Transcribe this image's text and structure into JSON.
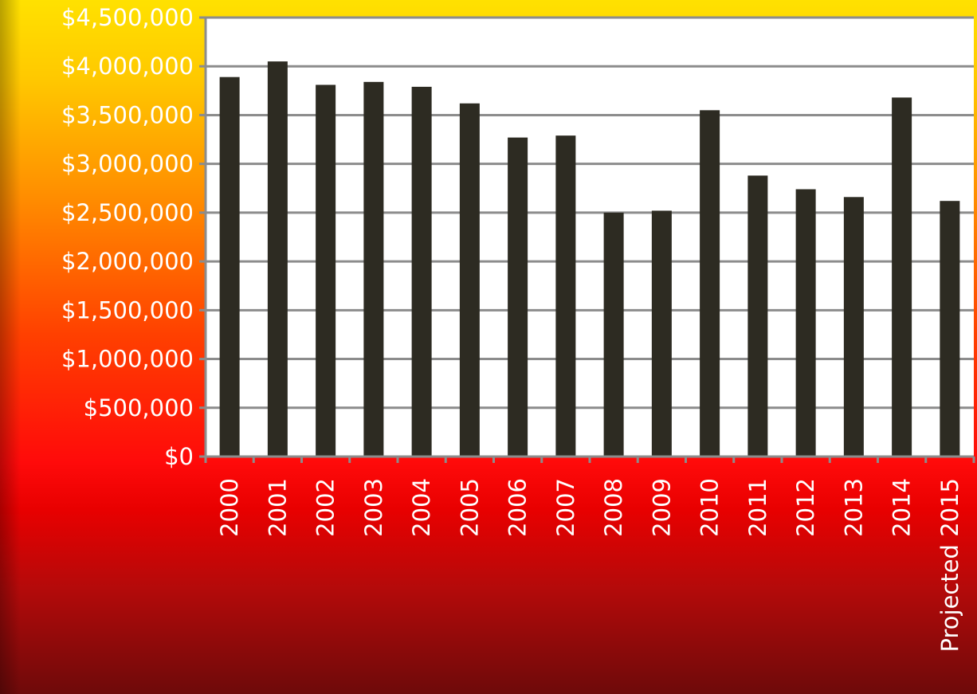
{
  "colors": {
    "bar": "#2d2b22",
    "plot_background": "#ffffff",
    "gridline": "#8c8c8c",
    "axis": "#8c8c8c",
    "tick_text": "#ffffff"
  },
  "chart_data": {
    "type": "bar",
    "title": "",
    "xlabel": "",
    "ylabel": "",
    "grid": true,
    "ylim": [
      0,
      4500000
    ],
    "y_ticks": [
      0,
      500000,
      1000000,
      1500000,
      2000000,
      2500000,
      3000000,
      3500000,
      4000000,
      4500000
    ],
    "y_tick_labels": [
      "$0",
      "$500,000",
      "$1,000,000",
      "$1,500,000",
      "$2,000,000",
      "$2,500,000",
      "$3,000,000",
      "$3,500,000",
      "$4,000,000",
      "$4,500,000"
    ],
    "categories": [
      "2000",
      "2001",
      "2002",
      "2003",
      "2004",
      "2005",
      "2006",
      "2007",
      "2008",
      "2009",
      "2010",
      "2011",
      "2012",
      "2013",
      "2014",
      "Projected 2015"
    ],
    "values": [
      3890000,
      4050000,
      3810000,
      3840000,
      3790000,
      3620000,
      3270000,
      3290000,
      2500000,
      2520000,
      3550000,
      2880000,
      2740000,
      2660000,
      3680000,
      2620000
    ]
  }
}
